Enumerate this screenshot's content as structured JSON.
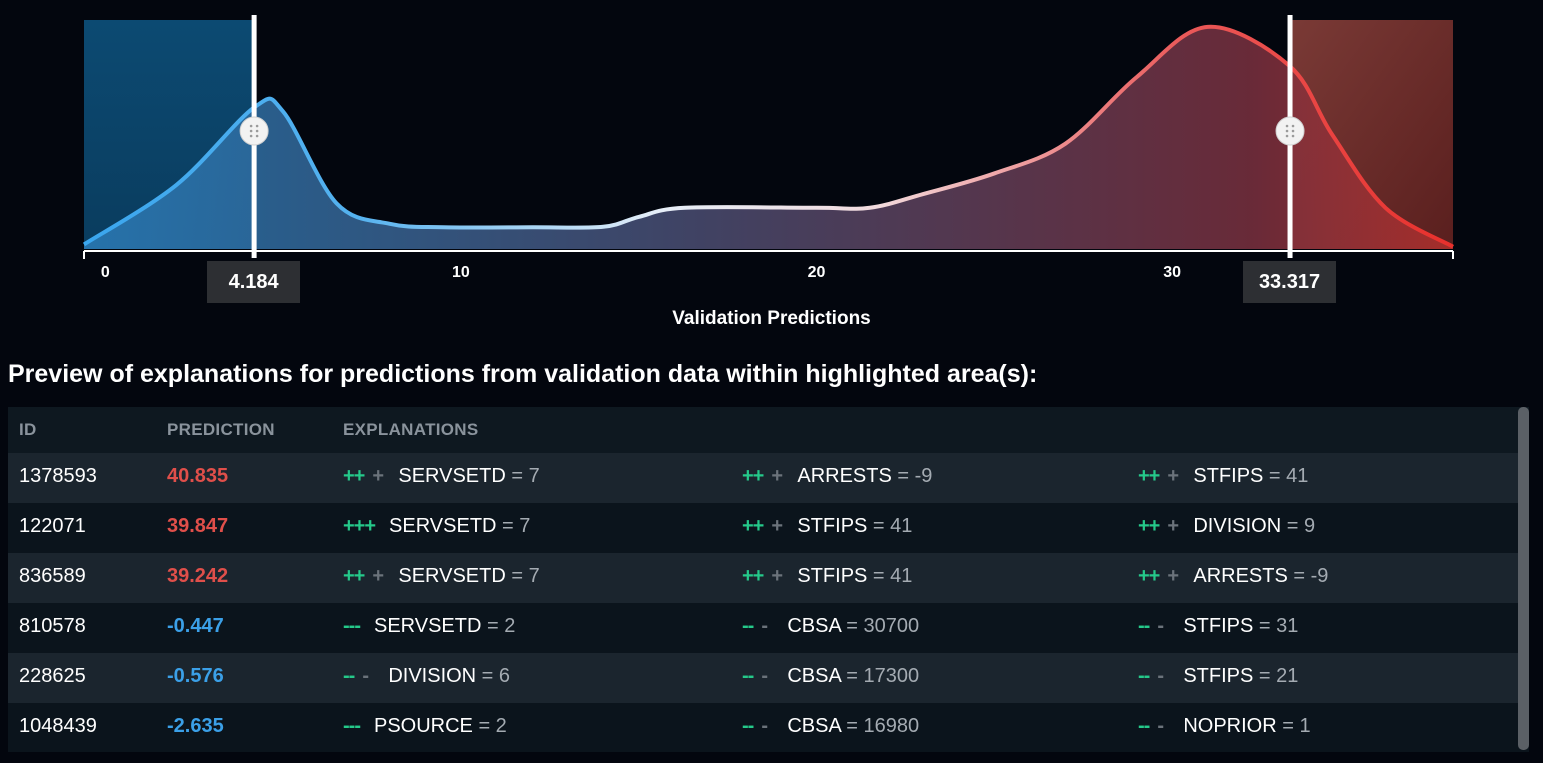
{
  "chart_data": {
    "type": "area",
    "xlabel": "Validation Predictions",
    "xlim": [
      -0.6,
      37.9
    ],
    "ticks": [
      0,
      10,
      20,
      30
    ],
    "ylim": [
      0,
      1
    ],
    "series": [
      {
        "x": [
          -0.6,
          2,
          4.2,
          5,
          6.5,
          8,
          9.5,
          12,
          14,
          15,
          16.3,
          20,
          21.5,
          23,
          25,
          27,
          29,
          31,
          33.3,
          34.5,
          36,
          37.9
        ],
        "values": [
          0.02,
          0.28,
          0.62,
          0.6,
          0.2,
          0.11,
          0.095,
          0.095,
          0.097,
          0.14,
          0.18,
          0.18,
          0.18,
          0.24,
          0.33,
          0.46,
          0.75,
          0.97,
          0.8,
          0.5,
          0.18,
          0.01
        ]
      }
    ],
    "thresholds": {
      "low": 4.184,
      "high": 33.317
    },
    "colors": {
      "low": "#3aa0e8",
      "high": "#e8403c",
      "mid": "#f0dde0"
    }
  },
  "thresholds": {
    "low_label": "4.184",
    "high_label": "33.317"
  },
  "axis_title": "Validation Predictions",
  "heading": "Preview of explanations for predictions from validation data within highlighted area(s):",
  "table": {
    "headers": {
      "id": "ID",
      "prediction": "PREDICTION",
      "explanations": "EXPLANATIONS"
    },
    "rows": [
      {
        "id": "1378593",
        "prediction": "40.835",
        "trend": "high",
        "explanations": [
          {
            "strength": "++",
            "minor": "+",
            "feature": "SERVSETD",
            "value": " = 7"
          },
          {
            "strength": "++",
            "minor": "+",
            "feature": "ARRESTS",
            "value": " = -9"
          },
          {
            "strength": "++",
            "minor": "+",
            "feature": "STFIPS",
            "value": " = 41"
          }
        ]
      },
      {
        "id": "122071",
        "prediction": "39.847",
        "trend": "high",
        "explanations": [
          {
            "strength": "+++",
            "minor": "",
            "feature": "SERVSETD",
            "value": " = 7"
          },
          {
            "strength": "++",
            "minor": "+",
            "feature": "STFIPS",
            "value": " = 41"
          },
          {
            "strength": "++",
            "minor": "+",
            "feature": "DIVISION",
            "value": " = 9"
          }
        ]
      },
      {
        "id": "836589",
        "prediction": "39.242",
        "trend": "high",
        "explanations": [
          {
            "strength": "++",
            "minor": "+",
            "feature": "SERVSETD",
            "value": " = 7"
          },
          {
            "strength": "++",
            "minor": "+",
            "feature": "STFIPS",
            "value": " = 41"
          },
          {
            "strength": "++",
            "minor": "+",
            "feature": "ARRESTS",
            "value": " = -9"
          }
        ]
      },
      {
        "id": "810578",
        "prediction": "-0.447",
        "trend": "low",
        "explanations": [
          {
            "strength": "---",
            "minor": "",
            "feature": "SERVSETD",
            "value": " = 2"
          },
          {
            "strength": "--",
            "minor": "-",
            "feature": "CBSA",
            "value": " = 30700"
          },
          {
            "strength": "--",
            "minor": "-",
            "feature": "STFIPS",
            "value": " = 31"
          }
        ]
      },
      {
        "id": "228625",
        "prediction": "-0.576",
        "trend": "low",
        "explanations": [
          {
            "strength": "--",
            "minor": "-",
            "feature": "DIVISION",
            "value": " = 6"
          },
          {
            "strength": "--",
            "minor": "-",
            "feature": "CBSA",
            "value": " = 17300"
          },
          {
            "strength": "--",
            "minor": "-",
            "feature": "STFIPS",
            "value": " = 21"
          }
        ]
      },
      {
        "id": "1048439",
        "prediction": "-2.635",
        "trend": "low",
        "explanations": [
          {
            "strength": "---",
            "minor": "",
            "feature": "PSOURCE",
            "value": " = 2"
          },
          {
            "strength": "--",
            "minor": "-",
            "feature": "CBSA",
            "value": " = 16980"
          },
          {
            "strength": "--",
            "minor": "-",
            "feature": "NOPRIOR",
            "value": " = 1"
          }
        ]
      }
    ]
  }
}
